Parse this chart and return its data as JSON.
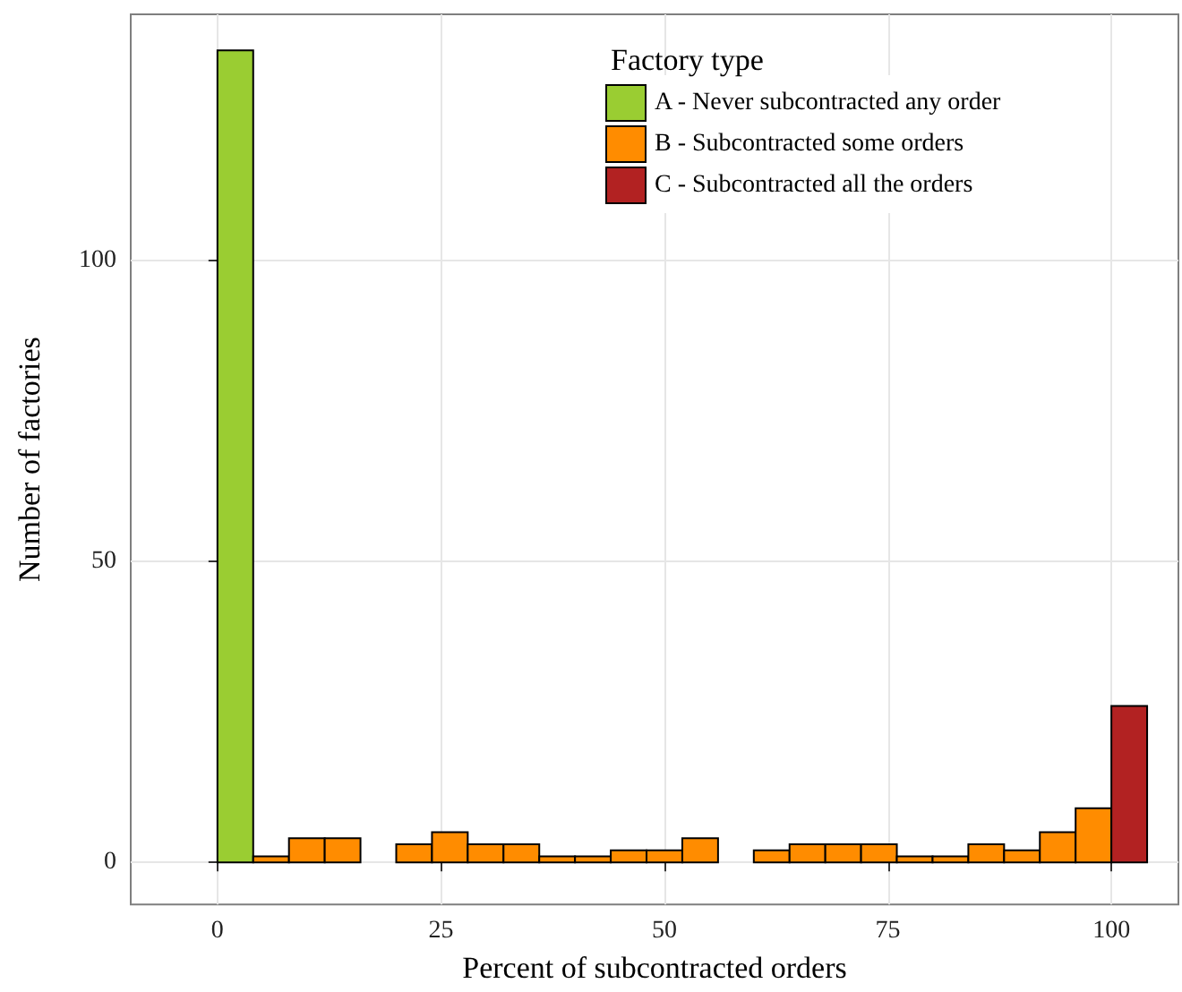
{
  "chart_data": {
    "type": "histogram",
    "xlabel": "Percent of subcontracted orders",
    "ylabel": "Number of factories",
    "legend_title": "Factory type",
    "bins": [
      -4,
      0,
      4,
      8,
      12,
      16,
      20,
      24,
      28,
      32,
      36,
      40,
      44,
      48,
      52,
      56,
      60,
      64,
      68,
      72,
      76,
      80,
      84,
      88,
      92,
      96,
      100,
      104
    ],
    "series": [
      {
        "name": "A - Never subcontracted any order",
        "color": "#9acd32",
        "values": [
          null,
          135,
          null,
          null,
          null,
          null,
          null,
          null,
          null,
          null,
          null,
          null,
          null,
          null,
          null,
          null,
          null,
          null,
          null,
          null,
          null,
          null,
          null,
          null,
          null,
          null,
          null
        ]
      },
      {
        "name": "B - Subcontracted some orders",
        "color": "#ff8c00",
        "values": [
          0,
          null,
          1,
          4,
          4,
          0,
          3,
          5,
          3,
          3,
          1,
          1,
          2,
          2,
          4,
          0,
          2,
          3,
          3,
          3,
          1,
          1,
          3,
          2,
          5,
          9,
          null
        ]
      },
      {
        "name": "C - Subcontracted all the orders",
        "color": "#b22222",
        "values": [
          null,
          null,
          null,
          null,
          null,
          null,
          null,
          null,
          null,
          null,
          null,
          null,
          null,
          null,
          null,
          null,
          null,
          null,
          null,
          null,
          null,
          null,
          null,
          null,
          null,
          null,
          26
        ]
      }
    ],
    "xlim": [
      -9.7,
      107.5
    ],
    "xticks": [
      0,
      25,
      50,
      75,
      100
    ],
    "ylim": [
      -7,
      141
    ],
    "yticks": [
      0,
      50,
      100
    ],
    "grid": true,
    "legend": "top right"
  }
}
